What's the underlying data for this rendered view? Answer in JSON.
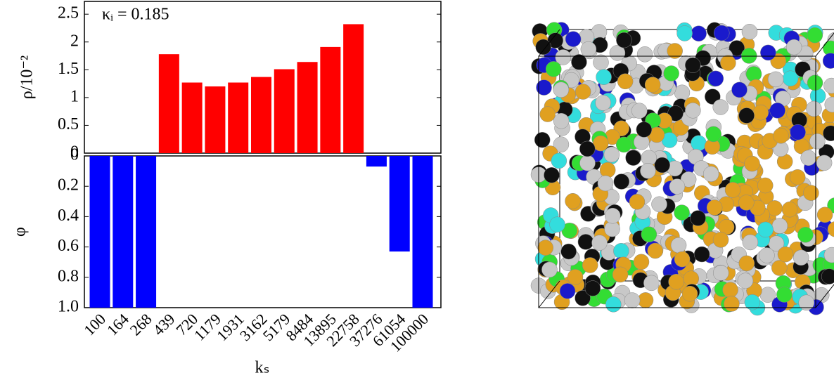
{
  "chart_data": [
    {
      "type": "bar",
      "y_label": "ρ/10⁻²",
      "annotation": "κᵢ = 0.185",
      "values": [
        0,
        0,
        0,
        1.78,
        1.27,
        1.2,
        1.27,
        1.37,
        1.51,
        1.64,
        1.91,
        2.32,
        0,
        0,
        0
      ],
      "color": "#ff0000",
      "ylim": [
        0,
        2.73
      ],
      "yticks": [
        0,
        0.5,
        1,
        1.5,
        2,
        2.5
      ]
    },
    {
      "type": "bar",
      "y_label": "φ",
      "x_label": "kₛ",
      "categories": [
        "100",
        "164",
        "268",
        "439",
        "720",
        "1179",
        "1931",
        "3162",
        "5179",
        "8484",
        "13895",
        "22758",
        "37276",
        "61054",
        "100000"
      ],
      "values": [
        1,
        1,
        1,
        0,
        0,
        0,
        0,
        0,
        0,
        0,
        0,
        0,
        0.07,
        0.63,
        1
      ],
      "color": "#0000ff",
      "ylim": [
        0,
        1
      ],
      "y_inverted": true,
      "yticks": [
        0,
        0.2,
        0.4,
        0.6,
        0.8,
        {
          "value": 1,
          "label": "1.0"
        }
      ]
    }
  ]
}
